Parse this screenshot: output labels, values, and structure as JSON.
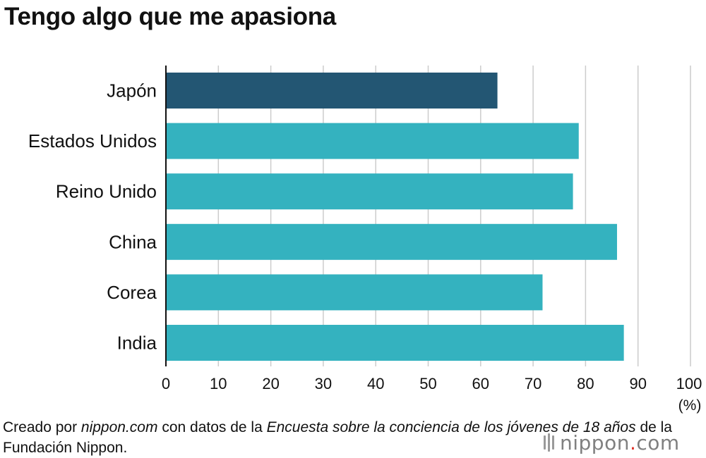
{
  "title": "Tengo algo que me apasiona",
  "chart_data": {
    "type": "bar",
    "orientation": "horizontal",
    "categories": [
      "Japón",
      "Estados Unidos",
      "Reino Unido",
      "China",
      "Corea",
      "India"
    ],
    "values": [
      63.2,
      78.7,
      77.6,
      86.0,
      71.8,
      87.3
    ],
    "xlim": [
      0,
      100
    ],
    "xticks": [
      0,
      10,
      20,
      30,
      40,
      50,
      60,
      70,
      80,
      90,
      100
    ],
    "unit_label": "(%)",
    "grid": true,
    "colors": {
      "highlight": "#235673",
      "default": "#34b2bf",
      "grid": "#cccccc",
      "axis": "#111111"
    },
    "highlight_index": 0
  },
  "footer": {
    "p1": "Creado por ",
    "p2": "nippon.com",
    "p3": " con datos de la ",
    "p4": "Encuesta sobre la conciencia de los jóvenes de 18 años",
    "p5": " de la Fundación Nippon."
  },
  "logo": {
    "name": "nippon",
    "dot": ".",
    "suffix": "com"
  }
}
